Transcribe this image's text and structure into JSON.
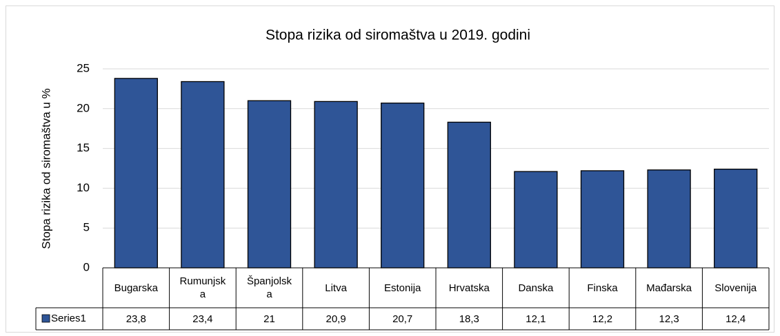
{
  "chart_data": {
    "type": "bar",
    "title": "Stopa rizika od siromaštva u 2019. godini",
    "y_label": "Stopa rizika od siromaštva u %",
    "categories": [
      "Bugarska",
      "Rumunjska",
      "Španjolska",
      "Litva",
      "Estonija",
      "Hrvatska",
      "Danska",
      "Finska",
      "Mađarska",
      "Slovenija"
    ],
    "series": [
      {
        "name": "Series1",
        "color": "#2f5597",
        "values": [
          23.8,
          23.4,
          21,
          20.9,
          20.7,
          18.3,
          12.1,
          12.2,
          12.3,
          12.4
        ],
        "value_labels": [
          "23,8",
          "23,4",
          "21",
          "20,9",
          "20,7",
          "18,3",
          "12,1",
          "12,2",
          "12,3",
          "12,4"
        ]
      }
    ],
    "ylim": [
      0,
      25
    ],
    "yticks": [
      0,
      5,
      10,
      15,
      20,
      25
    ],
    "grid": true
  }
}
